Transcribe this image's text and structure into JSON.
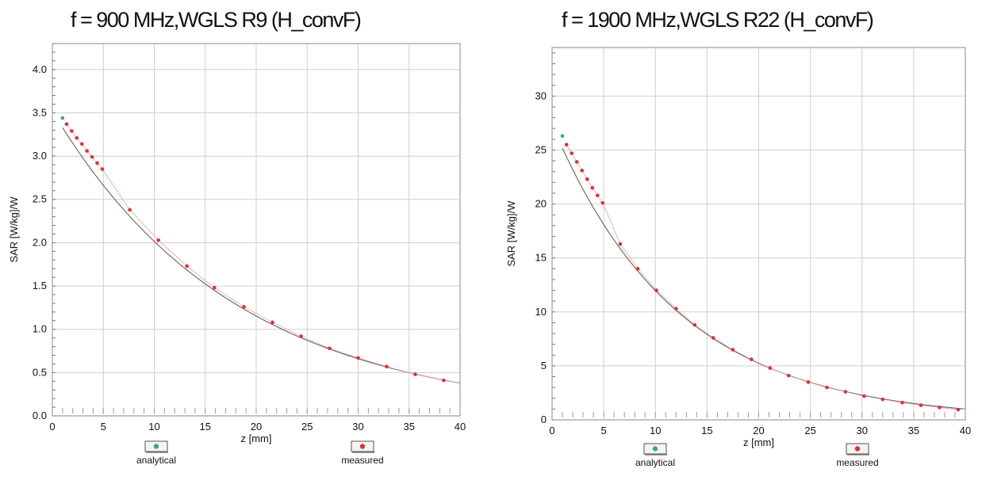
{
  "chart_data": [
    {
      "type": "line",
      "title": "f = 900 MHz,WGLS R9 (H_convF)",
      "xlabel": "z [mm]",
      "ylabel": "SAR [W/kg]/W",
      "xlim": [
        0,
        40
      ],
      "ylim": [
        0,
        4.3
      ],
      "xticks": [
        "0",
        "5",
        "10",
        "15",
        "20",
        "25",
        "30",
        "35",
        "40"
      ],
      "yticks": [
        "0.0",
        "0.5",
        "1.0",
        "1.5",
        "2.0",
        "2.5",
        "3.0",
        "3.5",
        "4.0"
      ],
      "grid": true,
      "legend_position": "bottom",
      "series": [
        {
          "name": "analytical",
          "color": "#3aa58a",
          "x": [
            1.0
          ],
          "y": [
            3.44
          ]
        },
        {
          "name": "measured",
          "color": "#e03030",
          "x": [
            1.4,
            1.9,
            2.4,
            2.9,
            3.4,
            3.9,
            4.4,
            4.9,
            7.6,
            10.4,
            13.2,
            15.9,
            18.8,
            21.6,
            24.4,
            27.2,
            30.0,
            32.8,
            35.6,
            38.4
          ],
          "y": [
            3.37,
            3.29,
            3.21,
            3.14,
            3.06,
            2.99,
            2.92,
            2.85,
            2.38,
            2.03,
            1.73,
            1.48,
            1.26,
            1.08,
            0.92,
            0.78,
            0.67,
            0.57,
            0.48,
            0.41
          ]
        }
      ],
      "fit_curve": {
        "color": "#555555",
        "a": 3.52,
        "k": 0.0558
      }
    },
    {
      "type": "line",
      "title": "f = 1900 MHz,WGLS R22 (H_convF)",
      "xlabel": "z [mm]",
      "ylabel": "SAR [W/kg]/W",
      "xlim": [
        0,
        40
      ],
      "ylim": [
        0,
        34.5
      ],
      "xticks": [
        "0",
        "5",
        "10",
        "15",
        "20",
        "25",
        "30",
        "35",
        "40"
      ],
      "yticks": [
        "0",
        "5",
        "10",
        "15",
        "20",
        "25",
        "30"
      ],
      "grid": true,
      "legend_position": "bottom",
      "series": [
        {
          "name": "analytical",
          "color": "#3aa58a",
          "x": [
            1.0
          ],
          "y": [
            26.3
          ]
        },
        {
          "name": "measured",
          "color": "#e03030",
          "x": [
            1.4,
            1.9,
            2.4,
            2.9,
            3.4,
            3.9,
            4.4,
            4.9,
            6.6,
            8.3,
            10.1,
            12.0,
            13.8,
            15.6,
            17.5,
            19.3,
            21.1,
            22.9,
            24.8,
            26.6,
            28.4,
            30.2,
            32.0,
            33.9,
            35.7,
            37.5,
            39.3
          ],
          "y": [
            25.5,
            24.7,
            23.9,
            23.1,
            22.3,
            21.5,
            20.8,
            20.1,
            16.3,
            14.0,
            12.0,
            10.3,
            8.8,
            7.6,
            6.5,
            5.6,
            4.8,
            4.1,
            3.5,
            3.0,
            2.6,
            2.2,
            1.9,
            1.6,
            1.35,
            1.15,
            0.95
          ]
        }
      ],
      "fit_curve": {
        "color": "#555555",
        "a": 27.35,
        "k": 0.0826
      }
    }
  ]
}
